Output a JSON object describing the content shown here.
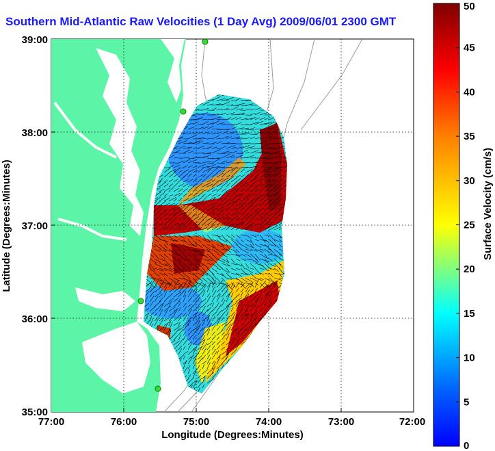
{
  "title": "Southern Mid-Atlantic Raw Velocities (1 Day Avg) 2009/06/01 2300 GMT",
  "chart_data": {
    "type": "heatmap",
    "xlabel": "Longitude (Degrees:Minutes)",
    "ylabel": "Latitude (Degrees:Minutes)",
    "x_ticks": [
      "77:00",
      "76:00",
      "75:00",
      "74:00",
      "73:00",
      "72:00"
    ],
    "y_ticks": [
      "39:00",
      "38:00",
      "37:00",
      "36:00",
      "35:00"
    ],
    "xlim": [
      -77,
      -72
    ],
    "ylim": [
      35,
      39
    ],
    "grid": true,
    "colorbar": {
      "label": "Surface Velocity (cm/s)",
      "ticks": [
        "50",
        "45",
        "40",
        "35",
        "30",
        "25",
        "20",
        "15",
        "10",
        "5",
        "0"
      ],
      "range": [
        0,
        50
      ],
      "colormap": "jet"
    },
    "colors": {
      "land": "#5cf5a8",
      "title": "#1a1aff",
      "station": "#33dd33"
    }
  }
}
